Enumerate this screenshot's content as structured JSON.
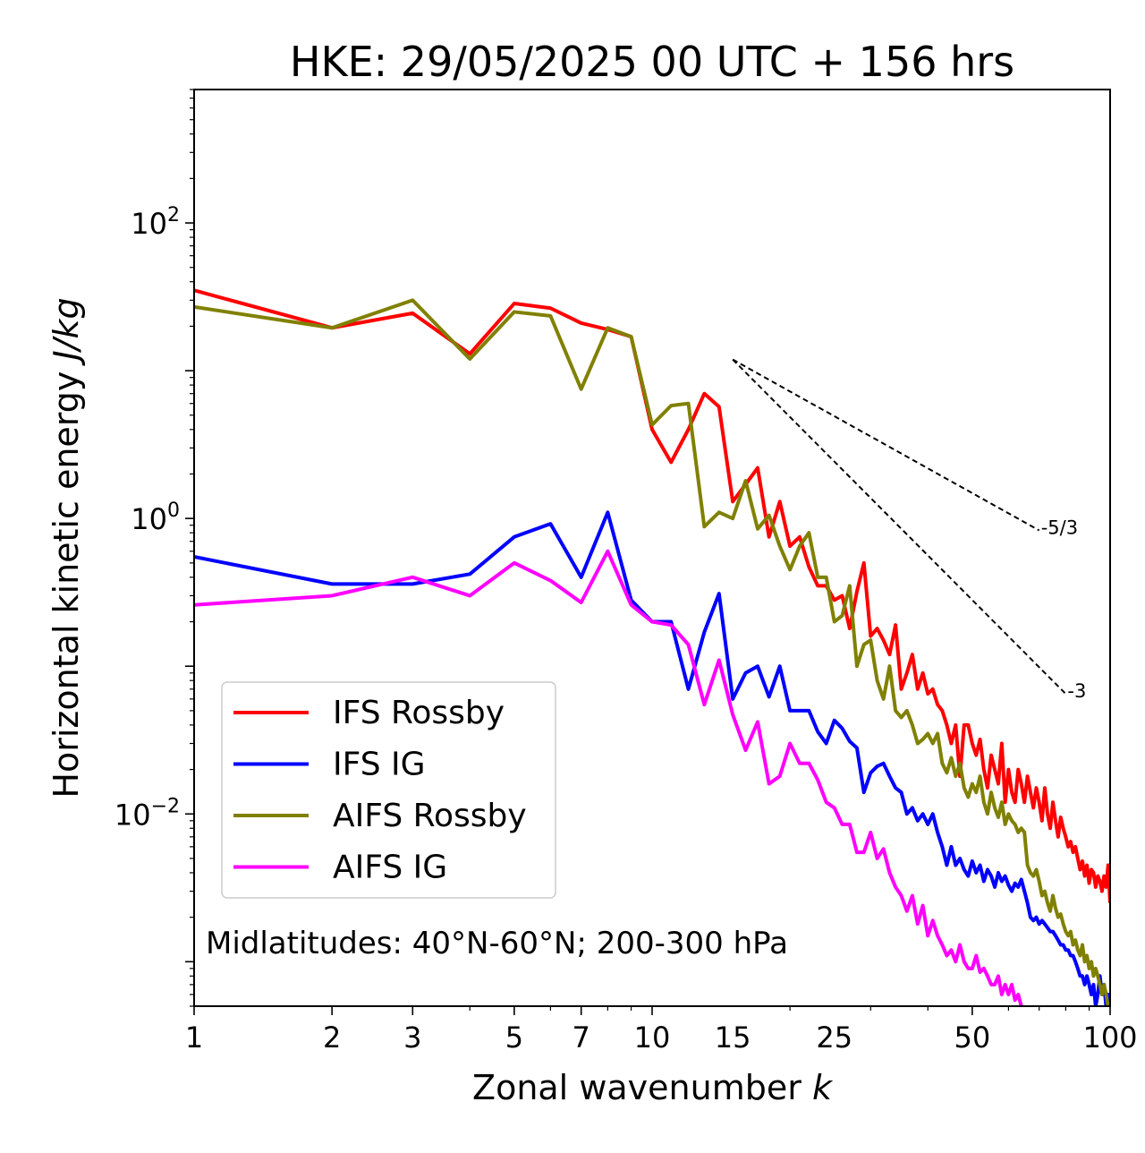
{
  "chart_data": {
    "type": "line",
    "title": "HKE: 29/05/2025 00 UTC + 156 hrs",
    "xlabel": "Zonal wavenumber",
    "xlabel_var": "k",
    "ylabel": "Horizontal kinetic energy",
    "ylabel_units": "J/kg",
    "xscale": "log",
    "yscale": "log",
    "xlim": [
      1,
      100
    ],
    "ylim": [
      0.0005,
      800
    ],
    "x_ticks": [
      1,
      2,
      3,
      5,
      7,
      10,
      15,
      25,
      50,
      100
    ],
    "x_tick_labels": [
      "1",
      "2",
      "3",
      "5",
      "7",
      "10",
      "15",
      "25",
      "50",
      "100"
    ],
    "y_ticks": [
      0.01,
      1,
      100
    ],
    "y_tick_labels": [
      {
        "base": "10",
        "exp": "−2"
      },
      {
        "base": "10",
        "exp": "0"
      },
      {
        "base": "10",
        "exp": "2"
      }
    ],
    "legend_position": "lower-left",
    "annotation": "Midlatitudes: 40°N-60°N; 200-300 hPa",
    "reference_slopes": [
      {
        "label": "-5/3",
        "x": [
          15,
          70
        ],
        "y": [
          11.9,
          0.83
        ]
      },
      {
        "label": "-3",
        "x": [
          15,
          80
        ],
        "y": [
          11.9,
          0.065
        ]
      }
    ],
    "series": [
      {
        "name": "IFS Rossby",
        "color": "#ff0000",
        "x": [
          1,
          2,
          3,
          4,
          5,
          6,
          7,
          8,
          9,
          10,
          11,
          12,
          13,
          14,
          15,
          16,
          17,
          18,
          19,
          20,
          21,
          22,
          23,
          24,
          25,
          26,
          27,
          28,
          29,
          30,
          31,
          32,
          33,
          34,
          35,
          36,
          37,
          38,
          39,
          40,
          41,
          42,
          43,
          44,
          45,
          46,
          47,
          48,
          49,
          50,
          51,
          52,
          53,
          54,
          55,
          56,
          57,
          58,
          59,
          60,
          61,
          62,
          63,
          64,
          65,
          66,
          67,
          68,
          69,
          70,
          71,
          72,
          73,
          74,
          75,
          76,
          77,
          78,
          79,
          80,
          81,
          82,
          83,
          84,
          85,
          86,
          87,
          88,
          89,
          90,
          91,
          92,
          93,
          94,
          95,
          96,
          97,
          98,
          99,
          100
        ],
        "y": [
          35,
          19.5,
          24.5,
          13,
          28.5,
          26.5,
          21,
          19,
          17,
          4,
          2.4,
          4,
          7,
          5.7,
          1.3,
          1.7,
          2.2,
          0.75,
          1.3,
          0.65,
          0.75,
          0.47,
          0.35,
          0.35,
          0.28,
          0.3,
          0.18,
          0.32,
          0.5,
          0.16,
          0.18,
          0.15,
          0.12,
          0.19,
          0.07,
          0.09,
          0.12,
          0.07,
          0.09,
          0.065,
          0.07,
          0.055,
          0.05,
          0.04,
          0.03,
          0.04,
          0.018,
          0.04,
          0.04,
          0.03,
          0.025,
          0.032,
          0.02,
          0.015,
          0.025,
          0.02,
          0.016,
          0.03,
          0.012,
          0.02,
          0.014,
          0.012,
          0.02,
          0.016,
          0.012,
          0.018,
          0.014,
          0.011,
          0.015,
          0.012,
          0.009,
          0.015,
          0.01,
          0.008,
          0.012,
          0.009,
          0.007,
          0.0095,
          0.008,
          0.007,
          0.006,
          0.0065,
          0.0055,
          0.006,
          0.005,
          0.0042,
          0.0048,
          0.0038,
          0.0045,
          0.0034,
          0.0042,
          0.004,
          0.0032,
          0.0038,
          0.0035,
          0.003,
          0.0038,
          0.0032,
          0.0045,
          0.0025
        ]
      },
      {
        "name": "IFS IG",
        "color": "#0000ff",
        "x": [
          1,
          2,
          3,
          4,
          5,
          6,
          7,
          8,
          9,
          10,
          11,
          12,
          13,
          14,
          15,
          16,
          17,
          18,
          19,
          20,
          21,
          22,
          23,
          24,
          25,
          26,
          27,
          28,
          29,
          30,
          31,
          32,
          33,
          34,
          35,
          36,
          37,
          38,
          39,
          40,
          41,
          42,
          43,
          44,
          45,
          46,
          47,
          48,
          49,
          50,
          51,
          52,
          53,
          54,
          55,
          56,
          57,
          58,
          59,
          60,
          61,
          62,
          63,
          64,
          65,
          66,
          67,
          68,
          69,
          70,
          71,
          72,
          73,
          74,
          75,
          76,
          77,
          78,
          79,
          80,
          81,
          82,
          83,
          84,
          85,
          86,
          87,
          88,
          89,
          90,
          91,
          92,
          93,
          94,
          95,
          96,
          97,
          98,
          99,
          100
        ],
        "y": [
          0.55,
          0.36,
          0.36,
          0.42,
          0.75,
          0.92,
          0.4,
          1.1,
          0.28,
          0.2,
          0.2,
          0.07,
          0.17,
          0.31,
          0.06,
          0.09,
          0.1,
          0.062,
          0.1,
          0.05,
          0.05,
          0.05,
          0.036,
          0.03,
          0.043,
          0.038,
          0.031,
          0.028,
          0.014,
          0.019,
          0.021,
          0.022,
          0.018,
          0.015,
          0.014,
          0.01,
          0.011,
          0.009,
          0.01,
          0.0085,
          0.01,
          0.0075,
          0.006,
          0.0045,
          0.006,
          0.0045,
          0.005,
          0.0042,
          0.0038,
          0.0048,
          0.004,
          0.0045,
          0.0035,
          0.0042,
          0.0038,
          0.0032,
          0.004,
          0.0035,
          0.0038,
          0.0033,
          0.003,
          0.0034,
          0.0032,
          0.0036,
          0.003,
          0.0025,
          0.002,
          0.0019,
          0.002,
          0.0018,
          0.0019,
          0.0018,
          0.0017,
          0.0016,
          0.0016,
          0.0015,
          0.0014,
          0.0013,
          0.0013,
          0.0012,
          0.0012,
          0.0011,
          0.0011,
          0.001,
          0.0009,
          0.0008,
          0.0008,
          0.0007,
          0.0008,
          0.0007,
          0.0006,
          0.0007,
          0.0005,
          0.0006,
          0.0008,
          0.0006,
          0.0007,
          0.0005,
          0.0006,
          0.0005
        ]
      },
      {
        "name": "AIFS Rossby",
        "color": "#808000",
        "x": [
          1,
          2,
          3,
          4,
          5,
          6,
          7,
          8,
          9,
          10,
          11,
          12,
          13,
          14,
          15,
          16,
          17,
          18,
          19,
          20,
          21,
          22,
          23,
          24,
          25,
          26,
          27,
          28,
          29,
          30,
          31,
          32,
          33,
          34,
          35,
          36,
          37,
          38,
          39,
          40,
          41,
          42,
          43,
          44,
          45,
          46,
          47,
          48,
          49,
          50,
          51,
          52,
          53,
          54,
          55,
          56,
          57,
          58,
          59,
          60,
          61,
          62,
          63,
          64,
          65,
          66,
          67,
          68,
          69,
          70,
          71,
          72,
          73,
          74,
          75,
          76,
          77,
          78,
          79,
          80,
          81,
          82,
          83,
          84,
          85,
          86,
          87,
          88,
          89,
          90,
          91,
          92,
          93,
          94,
          95,
          96,
          97,
          98,
          99,
          100
        ],
        "y": [
          27,
          19.5,
          30,
          12,
          25,
          23.5,
          7.5,
          19.5,
          17,
          4.3,
          5.8,
          6,
          0.88,
          1.1,
          1,
          1.8,
          0.85,
          1.05,
          0.65,
          0.45,
          0.65,
          0.8,
          0.4,
          0.4,
          0.2,
          0.22,
          0.35,
          0.1,
          0.14,
          0.15,
          0.08,
          0.06,
          0.1,
          0.05,
          0.045,
          0.05,
          0.04,
          0.03,
          0.032,
          0.035,
          0.03,
          0.035,
          0.022,
          0.019,
          0.024,
          0.018,
          0.022,
          0.015,
          0.013,
          0.016,
          0.014,
          0.018,
          0.012,
          0.01,
          0.014,
          0.011,
          0.0095,
          0.012,
          0.0085,
          0.01,
          0.009,
          0.0085,
          0.0075,
          0.008,
          0.0075,
          0.0045,
          0.004,
          0.0038,
          0.0042,
          0.0035,
          0.0028,
          0.003,
          0.0025,
          0.0022,
          0.0028,
          0.0023,
          0.002,
          0.0021,
          0.0018,
          0.0016,
          0.0015,
          0.0016,
          0.0013,
          0.0014,
          0.0012,
          0.0011,
          0.0013,
          0.001,
          0.0011,
          0.0009,
          0.001,
          0.0008,
          0.0009,
          0.0008,
          0.0007,
          0.0006,
          0.0007,
          0.0006,
          0.0005,
          0.0005
        ]
      },
      {
        "name": "AIFS IG",
        "color": "#ff00ff",
        "x": [
          1,
          2,
          3,
          4,
          5,
          6,
          7,
          8,
          9,
          10,
          11,
          12,
          13,
          14,
          15,
          16,
          17,
          18,
          19,
          20,
          21,
          22,
          23,
          24,
          25,
          26,
          27,
          28,
          29,
          30,
          31,
          32,
          33,
          34,
          35,
          36,
          37,
          38,
          39,
          40,
          41,
          42,
          43,
          44,
          45,
          46,
          47,
          48,
          49,
          50,
          51,
          52,
          53,
          54,
          55,
          56,
          57,
          58,
          59,
          60,
          61,
          62,
          63,
          64,
          65,
          66,
          67,
          68,
          69,
          70,
          71,
          72,
          73,
          74,
          75,
          76,
          77,
          78,
          79,
          80,
          81,
          82,
          83,
          84,
          85,
          86,
          87,
          88,
          89,
          90,
          91,
          92,
          93,
          94,
          95,
          96,
          97,
          98,
          99,
          100
        ],
        "y": [
          0.26,
          0.3,
          0.4,
          0.3,
          0.5,
          0.38,
          0.27,
          0.6,
          0.26,
          0.2,
          0.19,
          0.14,
          0.055,
          0.11,
          0.047,
          0.027,
          0.042,
          0.016,
          0.018,
          0.03,
          0.022,
          0.022,
          0.017,
          0.012,
          0.011,
          0.0085,
          0.0085,
          0.0055,
          0.0055,
          0.0075,
          0.005,
          0.0058,
          0.004,
          0.0032,
          0.0028,
          0.0022,
          0.0028,
          0.0018,
          0.0024,
          0.0015,
          0.0019,
          0.0015,
          0.0013,
          0.0011,
          0.0012,
          0.001,
          0.0013,
          0.001,
          0.0009,
          0.0009,
          0.0011,
          0.00085,
          0.0009,
          0.0008,
          0.0007,
          0.0007,
          0.0008,
          0.0006,
          0.0007,
          0.0006,
          0.0007,
          0.00055,
          0.0006,
          0.0005,
          0.00045,
          0.0004,
          0.0004,
          0.0004,
          0.0004,
          0.0004,
          0.0004,
          0.0004,
          0.0004,
          0.0004,
          0.0004,
          0.0004,
          0.0004,
          0.0004,
          0.0004,
          0.0004,
          0.0004,
          0.0004,
          0.0004,
          0.0004,
          0.0004,
          0.0004,
          0.0004,
          0.0004,
          0.0004,
          0.0004,
          0.0004,
          0.0004,
          0.0004,
          0.0004,
          0.0004,
          0.0004,
          0.0004,
          0.0004,
          0.0004,
          0.0004
        ]
      }
    ]
  }
}
